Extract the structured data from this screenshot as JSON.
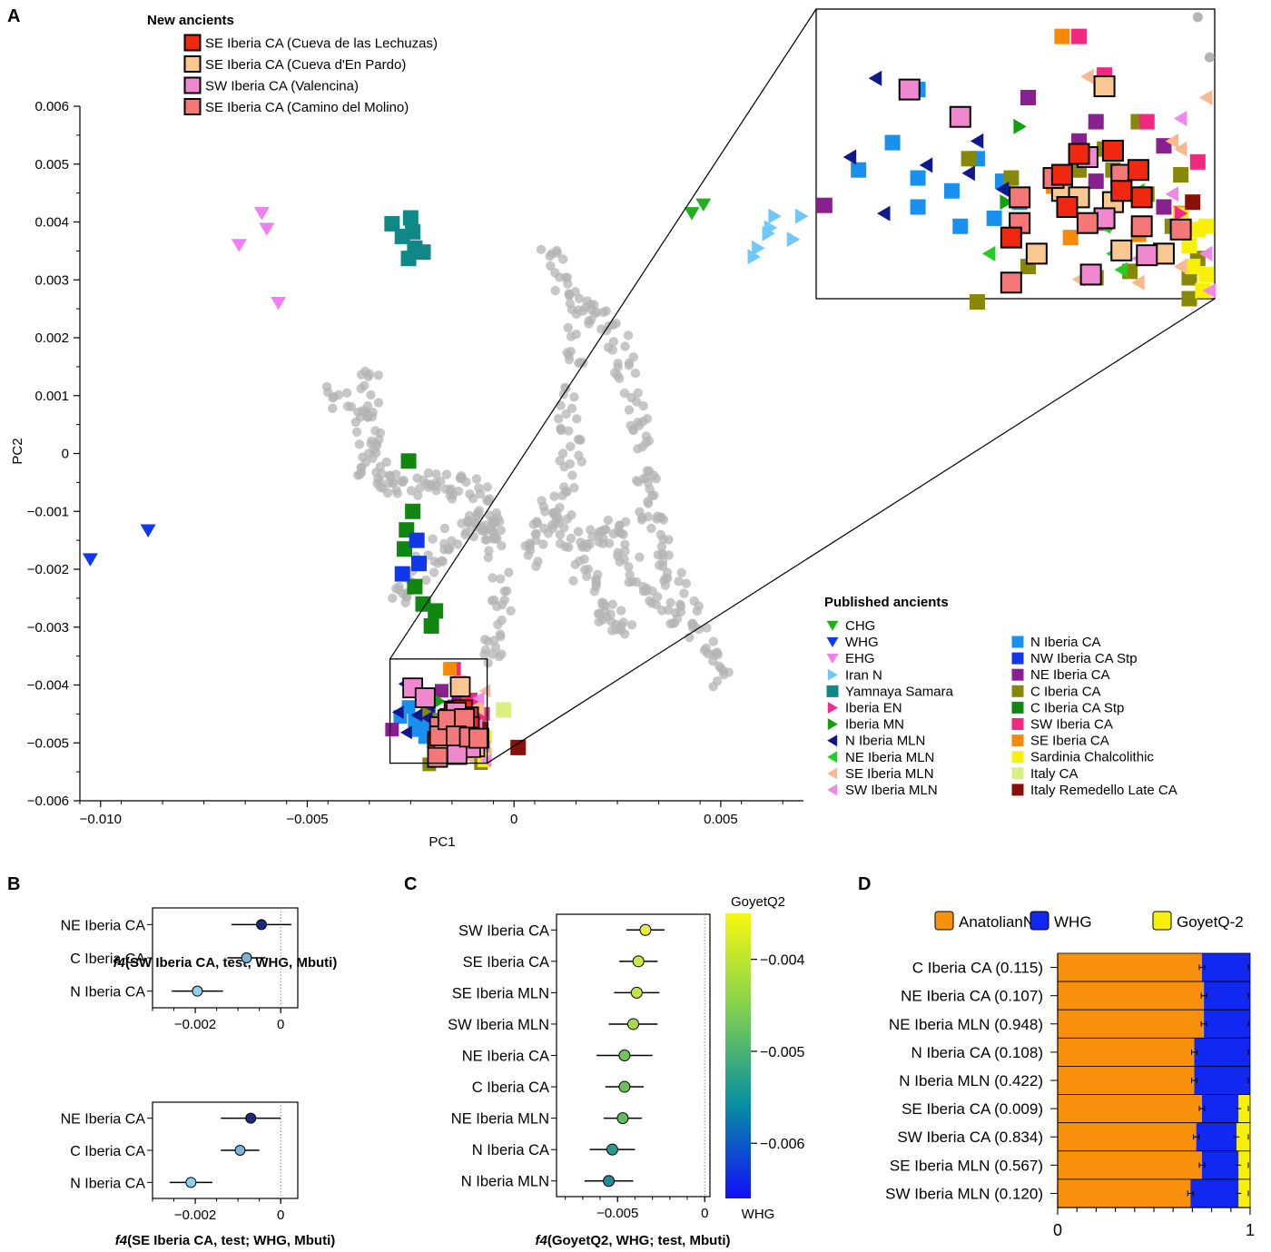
{
  "panel_letters": {
    "a": "A",
    "b": "B",
    "c": "C",
    "d": "D"
  },
  "colors": {
    "SE Iberia CA (Cueva de las Lechuzas)": "#f02810",
    "SE Iberia CA (Cueva d'En Pardo)": "#f8c890",
    "SW Iberia CA (Valencina)": "#f088d0",
    "SE Iberia CA (Camino del Molino)": "#f47878",
    "CHG": "#20b020",
    "WHG": "#1038f0",
    "EHG": "#f080f0",
    "Iran N": "#70c8f8",
    "Yamnaya Samara": "#108888",
    "Iberia EN": "#f02890",
    "Iberia MN": "#10a010",
    "N Iberia MLN": "#10188c",
    "NE Iberia MLN": "#20d020",
    "SE Iberia MLN": "#f8b890",
    "SW Iberia MLN": "#f088e8",
    "N Iberia CA": "#1890f0",
    "NW Iberia CA Stp": "#1038e8",
    "NE Iberia CA": "#882090",
    "C Iberia CA": "#888808",
    "C Iberia CA Stp": "#108810",
    "SW Iberia CA": "#f02880",
    "SE Iberia CA": "#f88808",
    "Sardinia Chalcolithic": "#f8f008",
    "Italy CA": "#d8f080",
    "Italy Remedello Late CA": "#881008",
    "reference": "#b4b4b4"
  },
  "chart_data": [
    {
      "panel": "A",
      "type": "scatter",
      "xlabel": "PC1",
      "ylabel": "PC2",
      "xlim": [
        -0.0105,
        0.007
      ],
      "ylim": [
        -0.006,
        0.006
      ],
      "xticks": [
        "−0.010",
        "−0.005",
        "0",
        "0.005"
      ],
      "yticks": [
        "−0.006",
        "−0.005",
        "−0.004",
        "−0.003",
        "−0.002",
        "−0.001",
        "0",
        "0.001",
        "0.002",
        "0.003",
        "0.004",
        "0.005",
        "0.006"
      ],
      "legend_new_title": "New ancients",
      "legend_new": [
        {
          "name": "SE Iberia CA (Cueva de las Lechuzas)",
          "marker": "square-outlined"
        },
        {
          "name": "SE Iberia CA (Cueva d'En Pardo)",
          "marker": "square-outlined"
        },
        {
          "name": "SW Iberia CA (Valencina)",
          "marker": "square-outlined"
        },
        {
          "name": "SE Iberia CA (Camino del Molino)",
          "marker": "square-outlined"
        }
      ],
      "legend_published_title": "Published ancients",
      "legend_published": [
        {
          "name": "CHG",
          "marker": "tri-down"
        },
        {
          "name": "WHG",
          "marker": "tri-down"
        },
        {
          "name": "EHG",
          "marker": "tri-down"
        },
        {
          "name": "Iran N",
          "marker": "tri-right"
        },
        {
          "name": "Yamnaya Samara",
          "marker": "square"
        },
        {
          "name": "Iberia EN",
          "marker": "tri-right"
        },
        {
          "name": "Iberia MN",
          "marker": "tri-right"
        },
        {
          "name": "N Iberia MLN",
          "marker": "tri-left"
        },
        {
          "name": "NE Iberia MLN",
          "marker": "tri-left"
        },
        {
          "name": "SE Iberia MLN",
          "marker": "tri-left"
        },
        {
          "name": "SW Iberia MLN",
          "marker": "tri-left"
        },
        {
          "name": "N Iberia CA",
          "marker": "square"
        },
        {
          "name": "NW Iberia CA Stp",
          "marker": "square"
        },
        {
          "name": "NE Iberia CA",
          "marker": "square"
        },
        {
          "name": "C Iberia CA",
          "marker": "square"
        },
        {
          "name": "C Iberia CA Stp",
          "marker": "square"
        },
        {
          "name": "SW Iberia CA",
          "marker": "square"
        },
        {
          "name": "SE Iberia CA",
          "marker": "square"
        },
        {
          "name": "Sardinia Chalcolithic",
          "marker": "square"
        },
        {
          "name": "Italy CA",
          "marker": "square"
        },
        {
          "name": "Italy Remedello Late CA",
          "marker": "square"
        }
      ],
      "points": {
        "WHG": [
          [
            -0.01025,
            -0.00183
          ],
          [
            -0.00885,
            -0.00133
          ]
        ],
        "EHG": [
          [
            -0.0061,
            0.00415
          ],
          [
            -0.00598,
            0.00388
          ],
          [
            -0.00665,
            0.0036
          ],
          [
            -0.0057,
            0.0026
          ]
        ],
        "CHG": [
          [
            0.0043,
            0.00415
          ],
          [
            0.00458,
            0.0043
          ]
        ],
        "Iran N": [
          [
            0.0058,
            0.0034
          ],
          [
            0.0059,
            0.00355
          ],
          [
            0.00615,
            0.0038
          ],
          [
            0.0062,
            0.0039
          ],
          [
            0.0063,
            0.0041
          ],
          [
            0.00675,
            0.0037
          ],
          [
            0.00695,
            0.0041
          ]
        ],
        "Yamnaya Samara": [
          [
            -0.00295,
            0.00397
          ],
          [
            -0.0025,
            0.00407
          ],
          [
            -0.00245,
            0.00383
          ],
          [
            -0.0027,
            0.00375
          ],
          [
            -0.0024,
            0.00355
          ],
          [
            -0.0022,
            0.00348
          ],
          [
            -0.00255,
            0.00337
          ]
        ],
        "C Iberia CA Stp": [
          [
            -0.00255,
            -0.00013
          ],
          [
            -0.00245,
            -0.001
          ],
          [
            -0.0026,
            -0.00132
          ],
          [
            -0.00265,
            -0.00165
          ],
          [
            -0.0024,
            -0.0023
          ],
          [
            -0.0022,
            -0.0026
          ],
          [
            -0.0019,
            -0.00272
          ],
          [
            -0.002,
            -0.00298
          ]
        ],
        "NW Iberia CA Stp": [
          [
            -0.00235,
            -0.0015
          ],
          [
            -0.0023,
            -0.0019
          ],
          [
            -0.0027,
            -0.00208
          ]
        ],
        "Italy Remedello Late CA": [
          [
            0.0001,
            -0.00508
          ]
        ],
        "Italy CA": [
          [
            -0.00025,
            -0.00443
          ]
        ]
      },
      "inset_region": {
        "xlim": [
          -0.003,
          -0.00065
        ],
        "ylim": [
          -0.00535,
          -0.00355
        ]
      },
      "inset_points": {
        "N Iberia CA": [
          [
            -0.00275,
            -0.00455
          ],
          [
            -0.00255,
            -0.00438
          ],
          [
            -0.0024,
            -0.0046
          ],
          [
            -0.0024,
            -0.00478
          ],
          [
            -0.0022,
            -0.00468
          ],
          [
            -0.00205,
            -0.00448
          ],
          [
            -0.00195,
            -0.00485
          ],
          [
            -0.0019,
            -0.00462
          ],
          [
            -0.0018,
            -0.00475
          ],
          [
            -0.00215,
            -0.0049
          ],
          [
            -0.0024,
            -0.00405
          ]
        ],
        "NE Iberia CA": [
          [
            -0.00295,
            -0.00477
          ],
          [
            -0.00185,
            -0.00498
          ],
          [
            -0.00175,
            -0.0041
          ],
          [
            -0.00145,
            -0.00437
          ],
          [
            -0.00135,
            -0.00425
          ],
          [
            -0.00095,
            -0.0044
          ],
          [
            -0.00135,
            -0.00462
          ],
          [
            -0.00095,
            -0.00478
          ]
        ],
        "C Iberia CA": [
          [
            -0.00205,
            -0.00537
          ],
          [
            -0.00145,
            -0.00455
          ],
          [
            -0.00125,
            -0.00473
          ],
          [
            -0.00175,
            -0.00515
          ],
          [
            -0.00135,
            -0.00522
          ],
          [
            -0.00115,
            -0.00518
          ],
          [
            -0.00095,
            -0.00505
          ],
          [
            -0.0008,
            -0.00522
          ],
          [
            -0.00075,
            -0.0051
          ],
          [
            -0.0008,
            -0.00535
          ],
          [
            -0.00125,
            -0.00455
          ],
          [
            -0.0011,
            -0.00425
          ],
          [
            -0.00085,
            -0.00458
          ],
          [
            -0.0013,
            -0.00442
          ],
          [
            -0.00185,
            -0.0046
          ],
          [
            -0.0009,
            -0.0049
          ],
          [
            -0.00105,
            -0.0047
          ],
          [
            -0.0021,
            -0.00448
          ]
        ],
        "SW Iberia CA": [
          [
            -0.00145,
            -0.00372
          ],
          [
            -0.0013,
            -0.00396
          ],
          [
            -0.00105,
            -0.00425
          ],
          [
            -0.0012,
            -0.00465
          ],
          [
            -0.00085,
            -0.00488
          ],
          [
            -0.00075,
            -0.0045
          ],
          [
            -0.0013,
            -0.00488
          ]
        ],
        "SE Iberia CA": [
          [
            -0.00155,
            -0.00372
          ],
          [
            -0.0014,
            -0.00445
          ],
          [
            -0.0016,
            -0.00465
          ],
          [
            -0.0011,
            -0.00495
          ],
          [
            -0.0015,
            -0.00497
          ],
          [
            -0.00085,
            -0.00482
          ]
        ],
        "Sardinia Chalcolithic": [
          [
            -0.00085,
            -0.00483
          ],
          [
            -0.00075,
            -0.00492
          ],
          [
            -0.0008,
            -0.00502
          ],
          [
            -0.00078,
            -0.00515
          ],
          [
            -0.0007,
            -0.0052
          ],
          [
            -0.00072,
            -0.0053
          ],
          [
            -0.0007,
            -0.0049
          ]
        ],
        "Italy Remedello Late CA": [
          [
            -0.00078,
            -0.00475
          ]
        ],
        "N Iberia MLN": [
          [
            -0.00265,
            -0.00398
          ],
          [
            -0.0028,
            -0.00447
          ],
          [
            -0.0026,
            -0.00482
          ],
          [
            -0.00235,
            -0.00452
          ],
          [
            -0.0021,
            -0.00457
          ],
          [
            -0.00205,
            -0.00437
          ],
          [
            -0.0019,
            -0.00467
          ]
        ],
        "NE Iberia MLN": [
          [
            -0.0011,
            -0.00468
          ],
          [
            -0.00125,
            -0.00507
          ],
          [
            -0.0017,
            -0.00507
          ],
          [
            -0.00198,
            -0.00507
          ],
          [
            -0.0012,
            -0.00517
          ],
          [
            -0.0013,
            -0.0049
          ]
        ],
        "SE Iberia MLN": [
          [
            -0.0014,
            -0.00397
          ],
          [
            -0.0009,
            -0.00437
          ],
          [
            -0.00085,
            -0.00442
          ],
          [
            -0.0007,
            -0.0041
          ],
          [
            -0.00145,
            -0.00523
          ],
          [
            -0.0011,
            -0.00525
          ],
          [
            -0.00085,
            -0.00515
          ]
        ],
        "SW Iberia MLN": [
          [
            -0.00085,
            -0.00423
          ],
          [
            -0.0009,
            -0.0047
          ],
          [
            -0.0007,
            -0.00507
          ],
          [
            -0.00068,
            -0.0053
          ],
          [
            -0.0011,
            -0.0051
          ]
        ],
        "Iberia MN": [
          [
            -0.0018,
            -0.00428
          ],
          [
            -0.00188,
            -0.00475
          ]
        ],
        "Iberia EN": [
          [
            -0.00085,
            -0.00482
          ]
        ],
        "SE Iberia CA (Cueva de las Lechuzas)": [
          [
            -0.00155,
            -0.00458
          ],
          [
            -0.00145,
            -0.00445
          ],
          [
            -0.00125,
            -0.00443
          ],
          [
            -0.0011,
            -0.00455
          ],
          [
            -0.0012,
            -0.00468
          ],
          [
            -0.00185,
            -0.00497
          ],
          [
            -0.00152,
            -0.00478
          ],
          [
            -0.00108,
            -0.00472
          ]
        ],
        "SE Iberia CA (Cueva d'En Pardo)": [
          [
            -0.00155,
            -0.00468
          ],
          [
            -0.00145,
            -0.00472
          ],
          [
            -0.00125,
            -0.00475
          ],
          [
            -0.0017,
            -0.00507
          ],
          [
            -0.0012,
            -0.00505
          ],
          [
            -0.00095,
            -0.00507
          ],
          [
            -0.0013,
            -0.00403
          ]
        ],
        "SW Iberia CA (Valencina)": [
          [
            -0.00245,
            -0.00405
          ],
          [
            -0.00215,
            -0.00422
          ],
          [
            -0.0014,
            -0.00447
          ],
          [
            -0.0013,
            -0.00485
          ],
          [
            -0.00105,
            -0.00508
          ],
          [
            -0.00138,
            -0.0052
          ]
        ],
        "SE Iberia CA (Camino del Molino)": [
          [
            -0.0018,
            -0.00472
          ],
          [
            -0.0018,
            -0.00488
          ],
          [
            -0.0016,
            -0.0046
          ],
          [
            -0.0012,
            -0.00458
          ],
          [
            -0.0014,
            -0.00488
          ],
          [
            -0.00108,
            -0.0049
          ],
          [
            -0.00085,
            -0.00492
          ],
          [
            -0.00185,
            -0.00525
          ]
        ]
      }
    },
    {
      "panel": "B (top)",
      "type": "scatter",
      "xlabel": "f4(SW Iberia CA, test; WHG, Mbuti)",
      "xlabel_italic": "f4",
      "xlabel_rest": "(SW Iberia CA, test; WHG, Mbuti)",
      "xlim": [
        -0.003,
        0.0004
      ],
      "xticks": [
        "−0.002",
        "0"
      ],
      "categories": [
        "NE Iberia CA",
        "C Iberia CA",
        "N Iberia CA"
      ],
      "values": [
        -0.00045,
        -0.0008,
        -0.00195
      ],
      "errors": [
        0.0007,
        0.00045,
        0.0006
      ],
      "point_colors": [
        "#1a2a78",
        "#7ab4d8",
        "#8fd0ef"
      ]
    },
    {
      "panel": "B (bottom)",
      "type": "scatter",
      "xlabel": "f4(SE Iberia CA, test; WHG, Mbuti)",
      "xlabel_italic": "f4",
      "xlabel_rest": "(SE Iberia CA, test; WHG, Mbuti)",
      "xlim": [
        -0.003,
        0.0004
      ],
      "xticks": [
        "−0.002",
        "0"
      ],
      "categories": [
        "NE Iberia CA",
        "C Iberia CA",
        "N Iberia CA"
      ],
      "values": [
        -0.0007,
        -0.00095,
        -0.0021
      ],
      "errors": [
        0.0007,
        0.00045,
        0.0005
      ],
      "point_colors": [
        "#1a2a78",
        "#7ab4d8",
        "#8fd0ef"
      ]
    },
    {
      "panel": "C",
      "type": "scatter",
      "xlabel": "f4(GoyetQ2, WHG; test, Mbuti)",
      "xlabel_italic": "f4",
      "xlabel_rest": "(GoyetQ2, WHG; test, Mbuti)",
      "xlim": [
        -0.0085,
        0.0003
      ],
      "xticks": [
        "−0.005",
        "0"
      ],
      "categories": [
        "SW Iberia CA",
        "SE Iberia CA",
        "SE Iberia MLN",
        "SW Iberia MLN",
        "NE Iberia CA",
        "C Iberia CA",
        "NE Iberia MLN",
        "N Iberia CA",
        "N Iberia MLN"
      ],
      "values": [
        -0.0034,
        -0.0038,
        -0.0039,
        -0.0041,
        -0.0046,
        -0.0046,
        -0.0047,
        -0.0053,
        -0.0055
      ],
      "errors": [
        0.0011,
        0.0011,
        0.0013,
        0.0014,
        0.0016,
        0.0011,
        0.0011,
        0.0013,
        0.0014
      ],
      "point_colors": [
        "#e6f040",
        "#c8e848",
        "#c0e448",
        "#a6d84e",
        "#72c25c",
        "#6cc05e",
        "#66bc60",
        "#2a9a88",
        "#248a9a"
      ],
      "colorbar": {
        "label_top": "GoyetQ2",
        "label_bottom": "WHG",
        "range": [
          -0.0066,
          -0.0035
        ],
        "ticks": [
          "−0.004",
          "−0.005",
          "−0.006"
        ],
        "colors": [
          "#1010f8",
          "#0890a0",
          "#80d050",
          "#f8f810"
        ]
      }
    },
    {
      "panel": "D",
      "type": "bar",
      "stacked": true,
      "orientation": "horizontal",
      "xlim": [
        0,
        1
      ],
      "xticks": [
        "0",
        "1"
      ],
      "components": [
        "AnatolianN",
        "WHG",
        "GoyetQ-2"
      ],
      "component_colors": [
        "#f8900c",
        "#1028f0",
        "#f8f008"
      ],
      "categories": [
        "C Iberia CA (0.115)",
        "NE Iberia CA (0.107)",
        "NE Iberia MLN (0.948)",
        "N Iberia CA (0.108)",
        "N Iberia MLN (0.422)",
        "SE Iberia CA (0.009)",
        "SW Iberia CA (0.834)",
        "SE Iberia MLN (0.567)",
        "SW Iberia MLN (0.120)"
      ],
      "series": [
        {
          "name": "AnatolianN",
          "values": [
            0.75,
            0.76,
            0.76,
            0.71,
            0.71,
            0.75,
            0.72,
            0.75,
            0.69
          ]
        },
        {
          "name": "WHG",
          "values": [
            0.25,
            0.24,
            0.24,
            0.29,
            0.29,
            0.19,
            0.21,
            0.19,
            0.25
          ]
        },
        {
          "name": "GoyetQ-2",
          "values": [
            0,
            0,
            0,
            0,
            0,
            0.06,
            0.07,
            0.06,
            0.06
          ]
        }
      ]
    }
  ]
}
